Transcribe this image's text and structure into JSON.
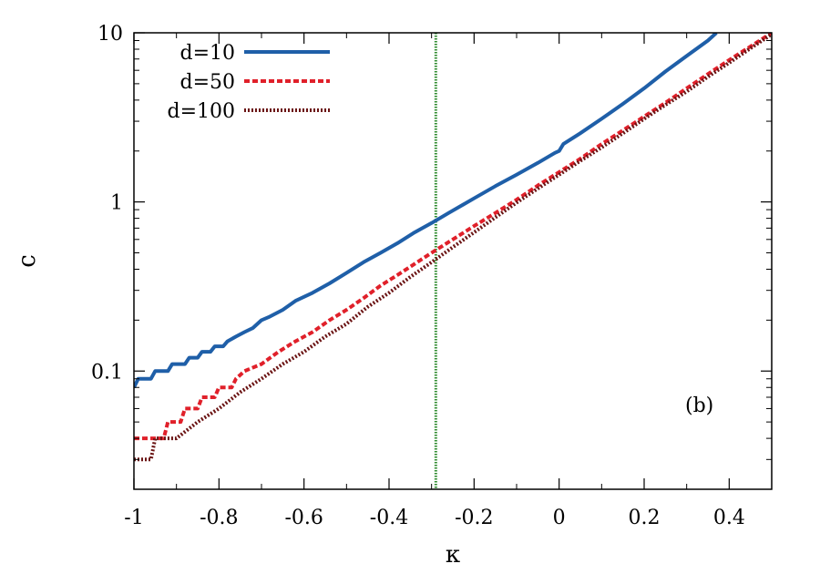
{
  "chart_data": {
    "type": "line",
    "title": "",
    "xlabel": "κ",
    "ylabel": "c",
    "xlim": [
      -1,
      0.5
    ],
    "ylim": [
      0.02,
      10
    ],
    "yscale": "log",
    "grid": false,
    "legend_position": "top-left",
    "annotation": "(b)",
    "xticks": [
      -1,
      -0.8,
      -0.6,
      -0.4,
      -0.2,
      0,
      0.2,
      0.4
    ],
    "xtick_labels": [
      "-1",
      "-0.8",
      "-0.6",
      "-0.4",
      "-0.2",
      "0",
      "0.2",
      "0.4"
    ],
    "yticks": [
      0.1,
      1,
      10
    ],
    "ytick_labels": [
      "0.1",
      "1",
      "10"
    ],
    "vline": {
      "x": -0.29,
      "color": "#2e8b2e"
    },
    "series": [
      {
        "name": "d=10",
        "color": "#1f5fa8",
        "style": "solid",
        "points": [
          [
            -1,
            0.08
          ],
          [
            -0.99,
            0.09
          ],
          [
            -0.96,
            0.09
          ],
          [
            -0.95,
            0.1
          ],
          [
            -0.92,
            0.1
          ],
          [
            -0.91,
            0.11
          ],
          [
            -0.88,
            0.11
          ],
          [
            -0.87,
            0.12
          ],
          [
            -0.85,
            0.12
          ],
          [
            -0.84,
            0.13
          ],
          [
            -0.82,
            0.13
          ],
          [
            -0.81,
            0.14
          ],
          [
            -0.79,
            0.14
          ],
          [
            -0.78,
            0.15
          ],
          [
            -0.76,
            0.16
          ],
          [
            -0.74,
            0.17
          ],
          [
            -0.72,
            0.18
          ],
          [
            -0.7,
            0.2
          ],
          [
            -0.68,
            0.21
          ],
          [
            -0.65,
            0.23
          ],
          [
            -0.62,
            0.26
          ],
          [
            -0.58,
            0.29
          ],
          [
            -0.54,
            0.33
          ],
          [
            -0.5,
            0.38
          ],
          [
            -0.46,
            0.44
          ],
          [
            -0.42,
            0.5
          ],
          [
            -0.38,
            0.57
          ],
          [
            -0.34,
            0.66
          ],
          [
            -0.3,
            0.75
          ],
          [
            -0.26,
            0.86
          ],
          [
            -0.2,
            1.05
          ],
          [
            -0.15,
            1.24
          ],
          [
            -0.1,
            1.45
          ],
          [
            -0.05,
            1.7
          ],
          [
            -0.01,
            1.95
          ],
          [
            0,
            2.0
          ],
          [
            0.01,
            2.2
          ],
          [
            0.05,
            2.55
          ],
          [
            0.1,
            3.1
          ],
          [
            0.15,
            3.8
          ],
          [
            0.2,
            4.7
          ],
          [
            0.25,
            5.9
          ],
          [
            0.3,
            7.3
          ],
          [
            0.35,
            9.0
          ],
          [
            0.37,
            10
          ]
        ]
      },
      {
        "name": "d=50",
        "color": "#e0202a",
        "style": "dashed",
        "points": [
          [
            -1,
            0.04
          ],
          [
            -0.93,
            0.04
          ],
          [
            -0.92,
            0.05
          ],
          [
            -0.89,
            0.05
          ],
          [
            -0.88,
            0.06
          ],
          [
            -0.85,
            0.06
          ],
          [
            -0.84,
            0.07
          ],
          [
            -0.81,
            0.07
          ],
          [
            -0.8,
            0.08
          ],
          [
            -0.77,
            0.08
          ],
          [
            -0.76,
            0.09
          ],
          [
            -0.74,
            0.1
          ],
          [
            -0.7,
            0.11
          ],
          [
            -0.66,
            0.13
          ],
          [
            -0.62,
            0.15
          ],
          [
            -0.58,
            0.17
          ],
          [
            -0.54,
            0.2
          ],
          [
            -0.5,
            0.23
          ],
          [
            -0.46,
            0.27
          ],
          [
            -0.42,
            0.32
          ],
          [
            -0.38,
            0.37
          ],
          [
            -0.34,
            0.43
          ],
          [
            -0.3,
            0.5
          ],
          [
            -0.25,
            0.6
          ],
          [
            -0.2,
            0.72
          ],
          [
            -0.15,
            0.86
          ],
          [
            -0.1,
            1.03
          ],
          [
            -0.05,
            1.25
          ],
          [
            0,
            1.5
          ],
          [
            0.05,
            1.8
          ],
          [
            0.1,
            2.2
          ],
          [
            0.15,
            2.65
          ],
          [
            0.2,
            3.2
          ],
          [
            0.25,
            3.85
          ],
          [
            0.3,
            4.7
          ],
          [
            0.35,
            5.7
          ],
          [
            0.4,
            6.9
          ],
          [
            0.45,
            8.3
          ],
          [
            0.5,
            10
          ]
        ]
      },
      {
        "name": "d=100",
        "color": "#6b1414",
        "style": "dotted",
        "points": [
          [
            -1,
            0.03
          ],
          [
            -0.96,
            0.03
          ],
          [
            -0.95,
            0.04
          ],
          [
            -0.9,
            0.04
          ],
          [
            -0.85,
            0.05
          ],
          [
            -0.8,
            0.06
          ],
          [
            -0.75,
            0.075
          ],
          [
            -0.7,
            0.09
          ],
          [
            -0.65,
            0.11
          ],
          [
            -0.6,
            0.13
          ],
          [
            -0.55,
            0.16
          ],
          [
            -0.5,
            0.19
          ],
          [
            -0.45,
            0.24
          ],
          [
            -0.4,
            0.29
          ],
          [
            -0.35,
            0.36
          ],
          [
            -0.3,
            0.44
          ],
          [
            -0.25,
            0.54
          ],
          [
            -0.2,
            0.66
          ],
          [
            -0.15,
            0.81
          ],
          [
            -0.1,
            0.99
          ],
          [
            -0.05,
            1.2
          ],
          [
            0,
            1.45
          ],
          [
            0.05,
            1.75
          ],
          [
            0.1,
            2.1
          ],
          [
            0.15,
            2.55
          ],
          [
            0.2,
            3.1
          ],
          [
            0.25,
            3.75
          ],
          [
            0.3,
            4.5
          ],
          [
            0.35,
            5.5
          ],
          [
            0.4,
            6.65
          ],
          [
            0.45,
            8.1
          ],
          [
            0.5,
            9.8
          ]
        ]
      }
    ]
  }
}
